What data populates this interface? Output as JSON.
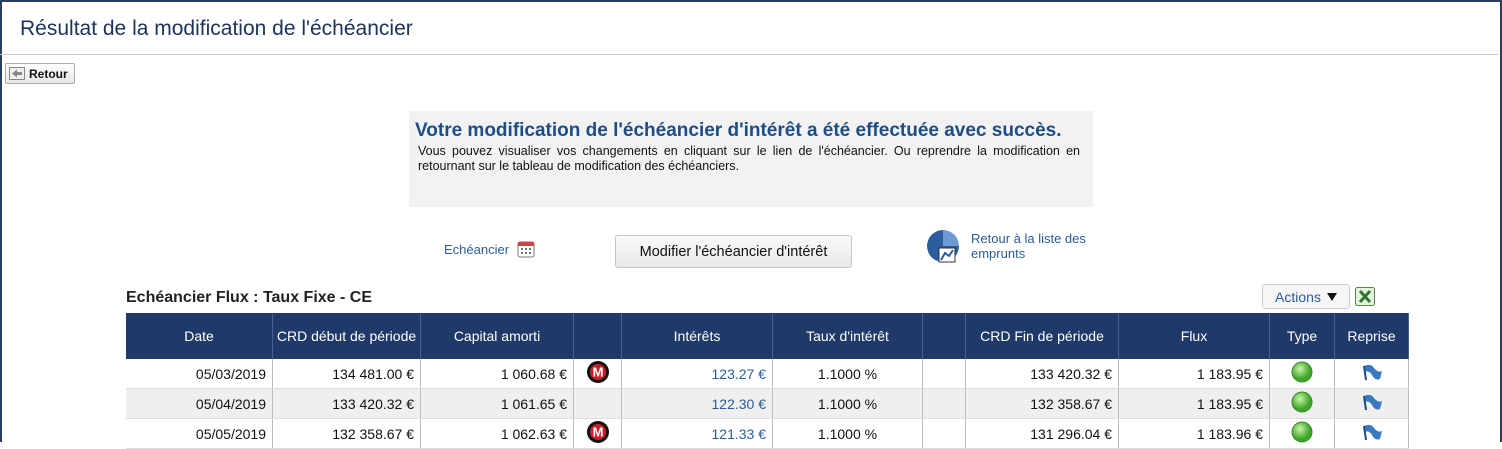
{
  "header": {
    "title": "Résultat de la modification de l'échéancier"
  },
  "back_button": "Retour",
  "message": {
    "title": "Votre modification de l'échéancier d'intérêt a été effectuée avec succès.",
    "text": "Vous pouvez visualiser vos changements en cliquant sur le lien de l'échéancier. Ou reprendre la modification en retournant sur le tableau de modification des échéanciers."
  },
  "links": {
    "schedule": "Echéancier",
    "modify": "Modifier l'échéancier d'intérêt",
    "back_to_list": "Retour à la liste des emprunts"
  },
  "table": {
    "title": "Echéancier Flux : Taux Fixe - CE",
    "actions": "Actions",
    "columns": {
      "date": "Date",
      "crd_start": "CRD début de période",
      "capital": "Capital amorti",
      "interest": "Intérêts",
      "rate": "Taux d'intérêt",
      "crd_end": "CRD Fin de période",
      "flux": "Flux",
      "type": "Type",
      "reprise": "Reprise"
    },
    "rows": [
      {
        "date": "05/03/2019",
        "crd_start": "134 481.00 €",
        "capital": "1 060.68 €",
        "marker": "M",
        "interest": "123.27 €",
        "rate": "1.1000 %",
        "crd_end": "133 420.32 €",
        "flux": "1 183.95 €"
      },
      {
        "date": "05/04/2019",
        "crd_start": "133 420.32 €",
        "capital": "1 061.65 €",
        "interest": "122.30 €",
        "rate": "1.1000 %",
        "crd_end": "132 358.67 €",
        "flux": "1 183.95 €"
      },
      {
        "date": "05/05/2019",
        "crd_start": "132 358.67 €",
        "capital": "1 062.63 €",
        "marker": "M",
        "interest": "121.33 €",
        "rate": "1.1000 %",
        "crd_end": "131 296.04 €",
        "flux": "1 183.96 €"
      }
    ]
  }
}
